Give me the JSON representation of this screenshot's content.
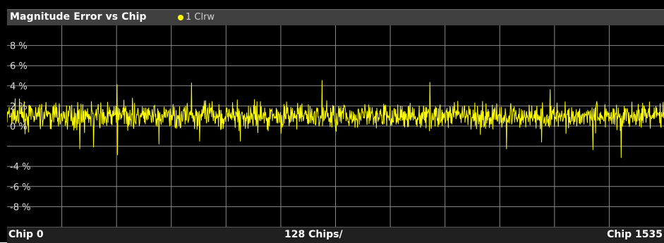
{
  "window": {
    "title": "Magnitude Error vs Chip",
    "trace_label": "1 Clrw",
    "trace_color": "#ffff00"
  },
  "footer": {
    "start_label": "Chip 0",
    "division_label": "128 Chips/",
    "end_label": "Chip 1535"
  },
  "chart_data": {
    "type": "line",
    "title": "Magnitude Error vs Chip",
    "xlabel": "",
    "ylabel": "",
    "xlim": [
      0,
      1535
    ],
    "ylim": [
      -10,
      10
    ],
    "y_tick_labels": [
      "8 %",
      "6 %",
      "4 %",
      "2 %",
      "0 %",
      "-4 %",
      "-6 %",
      "-8 %"
    ],
    "y_tick_values": [
      8,
      6,
      4,
      2,
      0,
      -4,
      -6,
      -8
    ],
    "x_divisions": 12,
    "x_unit_per_division": 128,
    "grid": true,
    "series": [
      {
        "name": "1 Clrw",
        "color": "#ffff00",
        "summary": {
          "mean": 1.0,
          "typical_min": -1.5,
          "typical_max": 3.0,
          "peak_max": 4.6,
          "peak_min": -4.5
        },
        "noise_seed": 7
      }
    ]
  }
}
